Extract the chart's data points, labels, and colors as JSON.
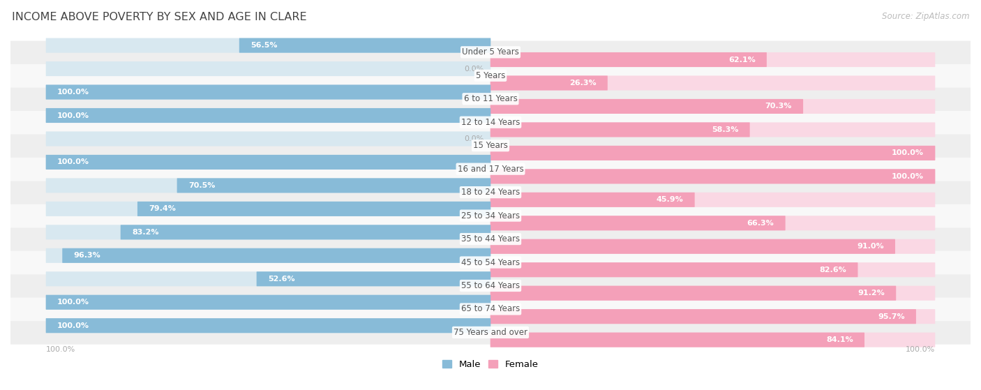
{
  "title": "INCOME ABOVE POVERTY BY SEX AND AGE IN CLARE",
  "source": "Source: ZipAtlas.com",
  "categories": [
    "Under 5 Years",
    "5 Years",
    "6 to 11 Years",
    "12 to 14 Years",
    "15 Years",
    "16 and 17 Years",
    "18 to 24 Years",
    "25 to 34 Years",
    "35 to 44 Years",
    "45 to 54 Years",
    "55 to 64 Years",
    "65 to 74 Years",
    "75 Years and over"
  ],
  "male": [
    56.5,
    0.0,
    100.0,
    100.0,
    0.0,
    100.0,
    70.5,
    79.4,
    83.2,
    96.3,
    52.6,
    100.0,
    100.0
  ],
  "female": [
    62.1,
    26.3,
    70.3,
    58.3,
    100.0,
    100.0,
    45.9,
    66.3,
    91.0,
    82.6,
    91.2,
    95.7,
    84.1
  ],
  "male_color": "#88bbd8",
  "female_color": "#f4a0b9",
  "male_bg_color": "#d8e8f0",
  "female_bg_color": "#fad8e4",
  "row_bg_odd": "#eeeeee",
  "row_bg_even": "#f8f8f8",
  "title_color": "#444444",
  "source_color": "#aaaaaa",
  "label_inside_color": "#ffffff",
  "label_outside_color": "#aaaaaa",
  "max_val": 100.0,
  "bar_height": 0.55,
  "legend_male": "Male",
  "legend_female": "Female"
}
